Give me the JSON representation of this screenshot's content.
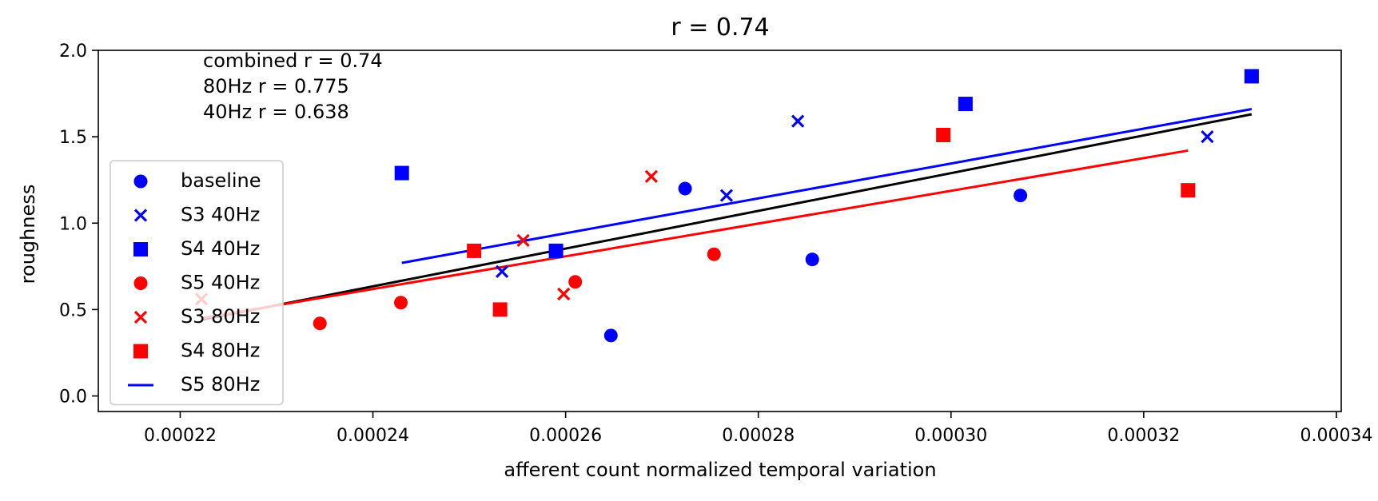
{
  "chart_data": {
    "type": "scatter",
    "title": "r = 0.74",
    "xlabel": "afferent count normalized temporal variation",
    "ylabel": "roughness",
    "xlim": [
      0.0002115,
      0.0003405
    ],
    "ylim": [
      -0.09,
      2.0
    ],
    "x_ticks": [
      0.00022,
      0.00024,
      0.00026,
      0.00028,
      0.0003,
      0.00032,
      0.00034
    ],
    "x_tick_labels": [
      "0.00022",
      "0.00024",
      "0.00026",
      "0.00028",
      "0.00030",
      "0.00032",
      "0.00034"
    ],
    "y_ticks": [
      0.0,
      0.5,
      1.0,
      1.5,
      2.0
    ],
    "y_tick_labels": [
      "0.0",
      "0.5",
      "1.0",
      "1.5",
      "2.0"
    ],
    "grid": false,
    "legend_position": "center-left",
    "annotations": [
      "combined r = 0.74",
      "80Hz r = 0.775",
      "40Hz r = 0.638"
    ],
    "series": [
      {
        "name": "baseline",
        "marker": "circle",
        "color": "#0000ff",
        "points": [
          [
            0.0002647,
            0.35
          ],
          [
            0.0002724,
            1.2
          ],
          [
            0.0002856,
            0.79
          ],
          [
            0.0003072,
            1.16
          ]
        ]
      },
      {
        "name": "S3 40Hz",
        "marker": "x",
        "color": "#0000ff",
        "points": [
          [
            0.0002534,
            0.72
          ],
          [
            0.0002767,
            1.16
          ],
          [
            0.0002841,
            1.59
          ],
          [
            0.0003266,
            1.5
          ]
        ]
      },
      {
        "name": "S4 40Hz",
        "marker": "square",
        "color": "#0000ff",
        "points": [
          [
            0.000243,
            1.29
          ],
          [
            0.000259,
            0.84
          ],
          [
            0.0003015,
            1.69
          ],
          [
            0.0003312,
            1.85
          ]
        ]
      },
      {
        "name": "S5 40Hz",
        "marker": "circle",
        "color": "#ff0000",
        "points": [
          [
            0.0002345,
            0.42
          ],
          [
            0.0002429,
            0.54
          ],
          [
            0.000261,
            0.66
          ],
          [
            0.0002754,
            0.82
          ]
        ]
      },
      {
        "name": "S3 80Hz",
        "marker": "x",
        "color": "#ff0000",
        "points": [
          [
            0.0002222,
            0.56
          ],
          [
            0.0002556,
            0.9
          ],
          [
            0.0002598,
            0.59
          ],
          [
            0.0002689,
            1.27
          ]
        ]
      },
      {
        "name": "S4 80Hz",
        "marker": "square",
        "color": "#ff0000",
        "points": [
          [
            0.0002505,
            0.84
          ],
          [
            0.0002532,
            0.5
          ],
          [
            0.0002992,
            1.51
          ],
          [
            0.0003246,
            1.19
          ]
        ]
      },
      {
        "name": "S5 80Hz",
        "marker": "line",
        "color": "#0000ff",
        "points": []
      }
    ],
    "fit_lines": [
      {
        "color": "#000000",
        "x": [
          0.0002222,
          0.0003312
        ],
        "y": [
          0.44,
          1.63
        ]
      },
      {
        "color": "#0000ff",
        "x": [
          0.000243,
          0.0003312
        ],
        "y": [
          0.77,
          1.66
        ]
      },
      {
        "color": "#ff0000",
        "x": [
          0.0002222,
          0.0003246
        ],
        "y": [
          0.45,
          1.42
        ]
      }
    ]
  }
}
